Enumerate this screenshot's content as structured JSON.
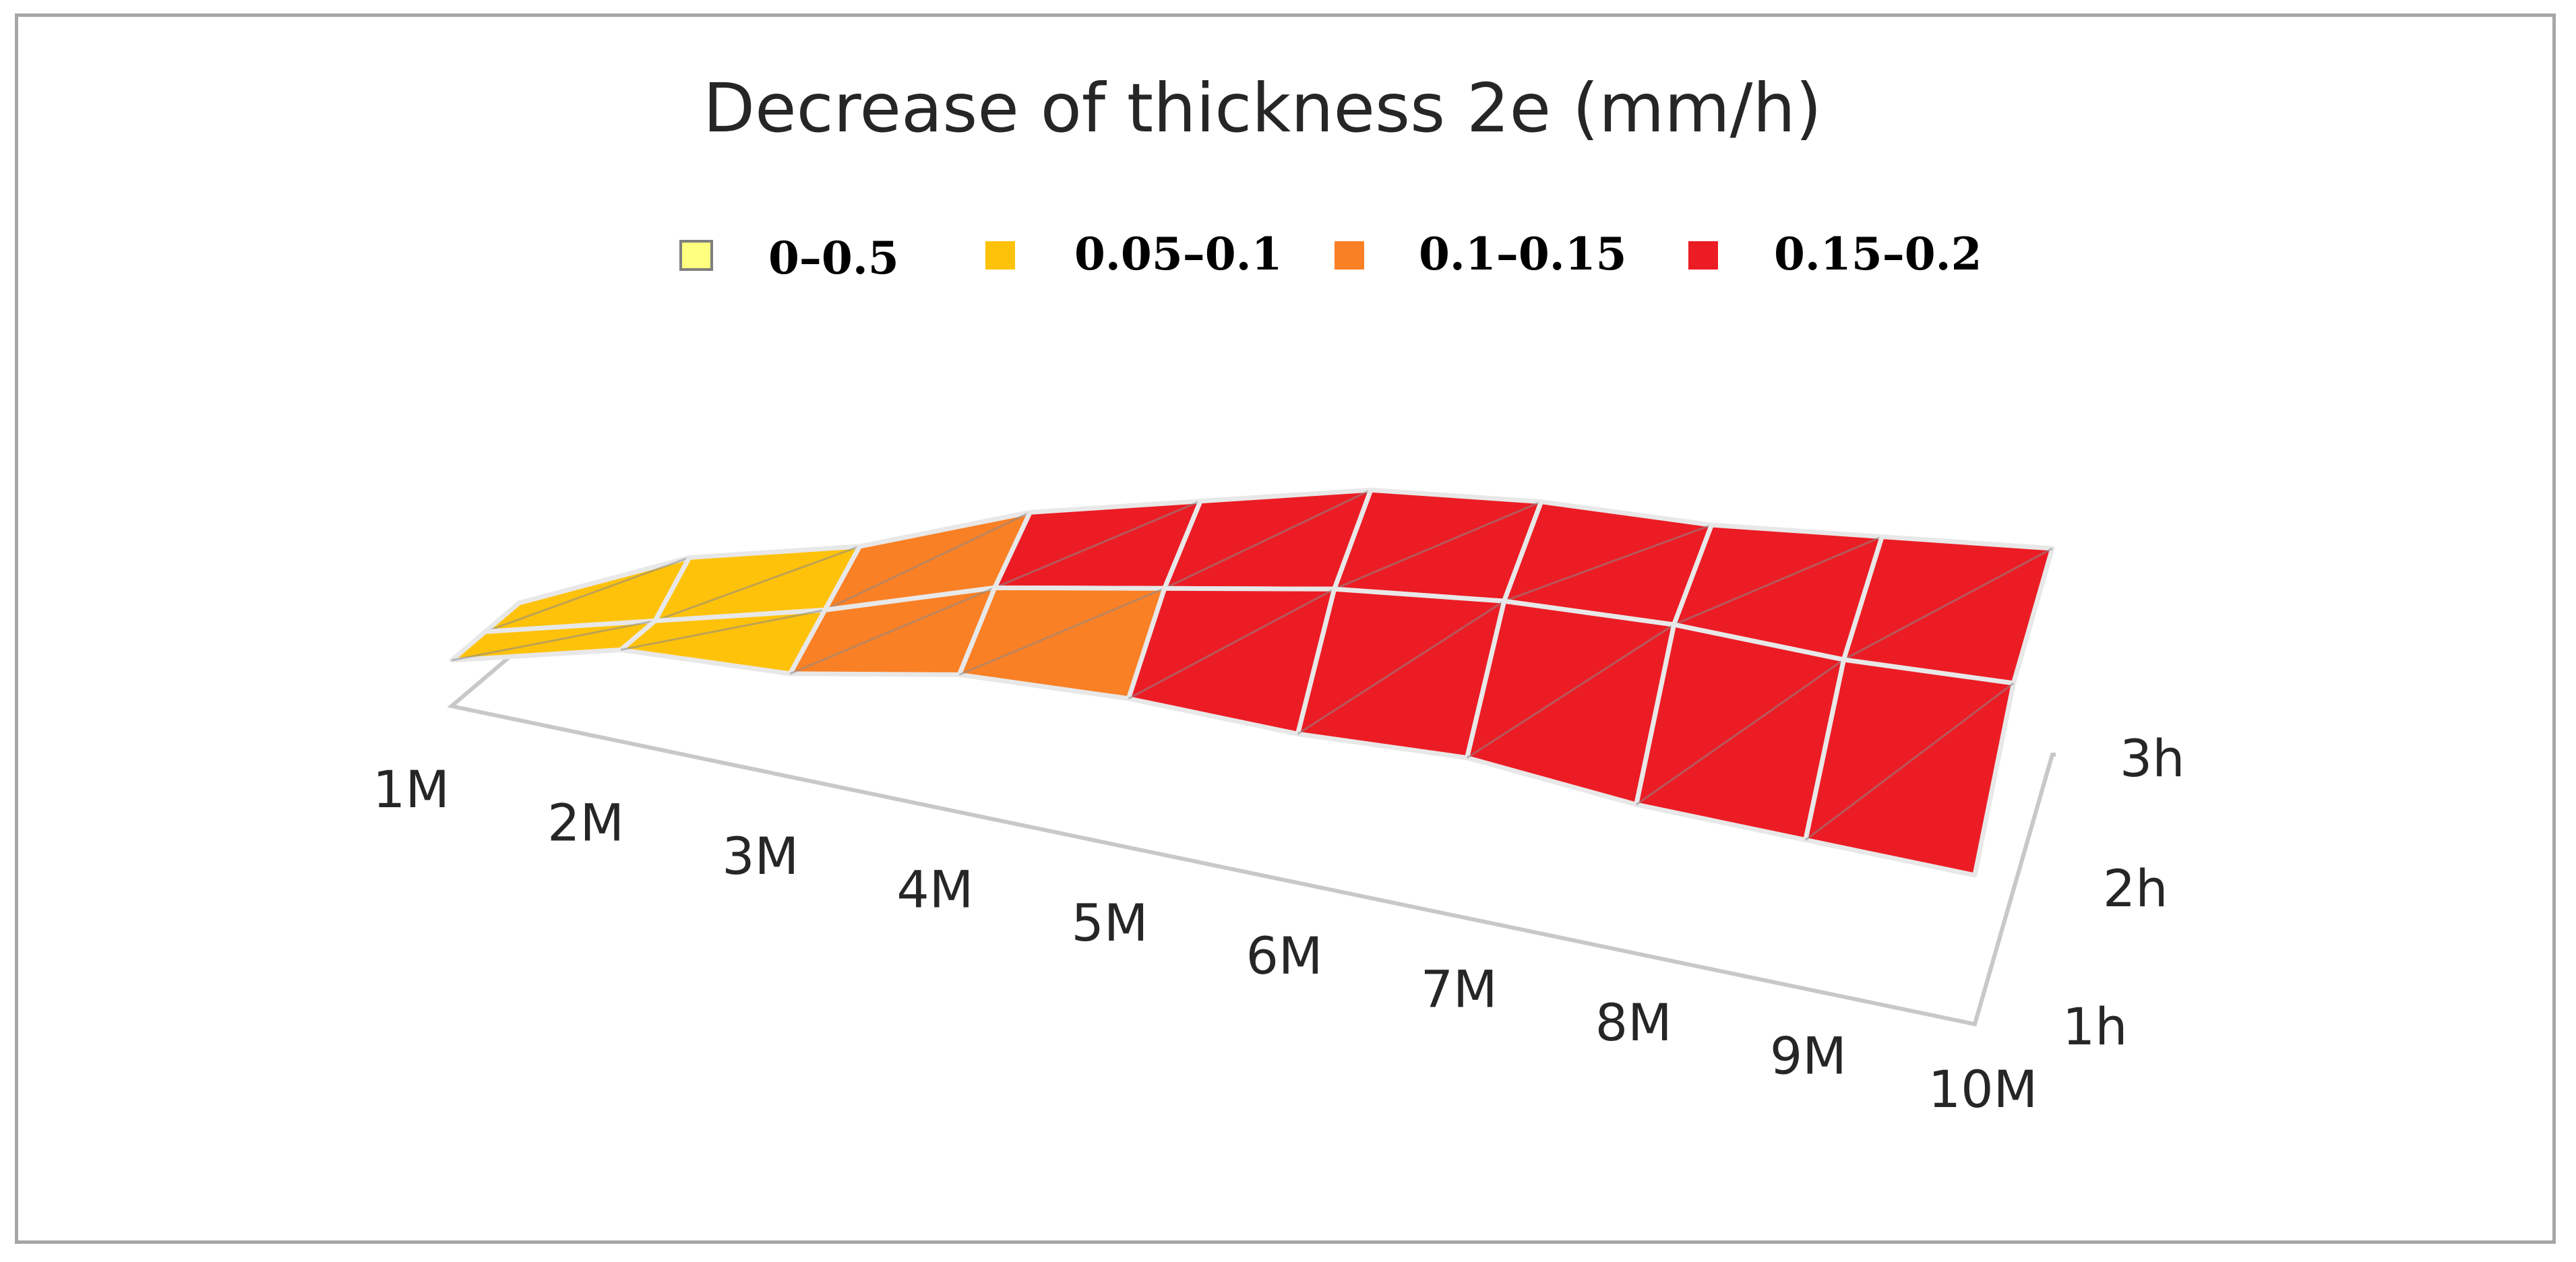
{
  "chart_data": {
    "type": "surface",
    "title": "Decrease of thickness 2e (mm/h)",
    "legend": {
      "position": "top",
      "entries": [
        {
          "label": "0–0.5",
          "color": "#ffff80"
        },
        {
          "label": "0.05–0.1",
          "color": "#ffc20a"
        },
        {
          "label": "0.1–0.15",
          "color": "#fa8025"
        },
        {
          "label": "0.15–0.2",
          "color": "#ec1c24"
        }
      ]
    },
    "x_categories": [
      "1M",
      "2M",
      "3M",
      "4M",
      "5M",
      "6M",
      "7M",
      "8M",
      "9M",
      "10M"
    ],
    "y_categories": [
      "1h",
      "2h",
      "3h"
    ],
    "series": [
      {
        "name": "1h",
        "values": [
          0.04,
          0.08,
          0.09,
          0.12,
          0.13,
          0.13,
          0.14,
          0.13,
          0.13,
          0.13
        ]
      },
      {
        "name": "2h",
        "values": [
          0.04,
          0.07,
          0.1,
          0.14,
          0.16,
          0.18,
          0.19,
          0.19,
          0.18,
          0.18
        ]
      },
      {
        "name": "3h",
        "values": [
          0.04,
          0.09,
          0.11,
          0.15,
          0.17,
          0.19,
          0.19,
          0.18,
          0.18,
          0.18
        ]
      }
    ],
    "zlim": [
      0,
      0.2
    ],
    "grid": false
  }
}
